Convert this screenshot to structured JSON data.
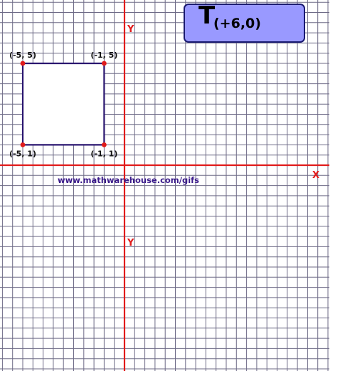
{
  "title": {
    "main": "T",
    "sub": "(+6,0)"
  },
  "axes": {
    "x_label": "X",
    "y_label_top": "Y",
    "y_label_bottom": "Y",
    "color": "#e11b1b"
  },
  "watermark": {
    "text": "www.mathwarehouse.com/gifs",
    "color": "#3a1a8a"
  },
  "colors": {
    "grid": "#6d6a86",
    "shape_stroke": "#2a1670",
    "vertex": "#e11b1b",
    "title_fill": "#9999ff",
    "title_border": "#1a1a70"
  },
  "square": {
    "vertices": [
      {
        "label": "(-5, 5)",
        "x": -5,
        "y": 5
      },
      {
        "label": "(-1, 5)",
        "x": -1,
        "y": 5
      },
      {
        "label": "(-1, 1)",
        "x": -1,
        "y": 1
      },
      {
        "label": "(-5, 1)",
        "x": -5,
        "y": 1
      }
    ]
  }
}
